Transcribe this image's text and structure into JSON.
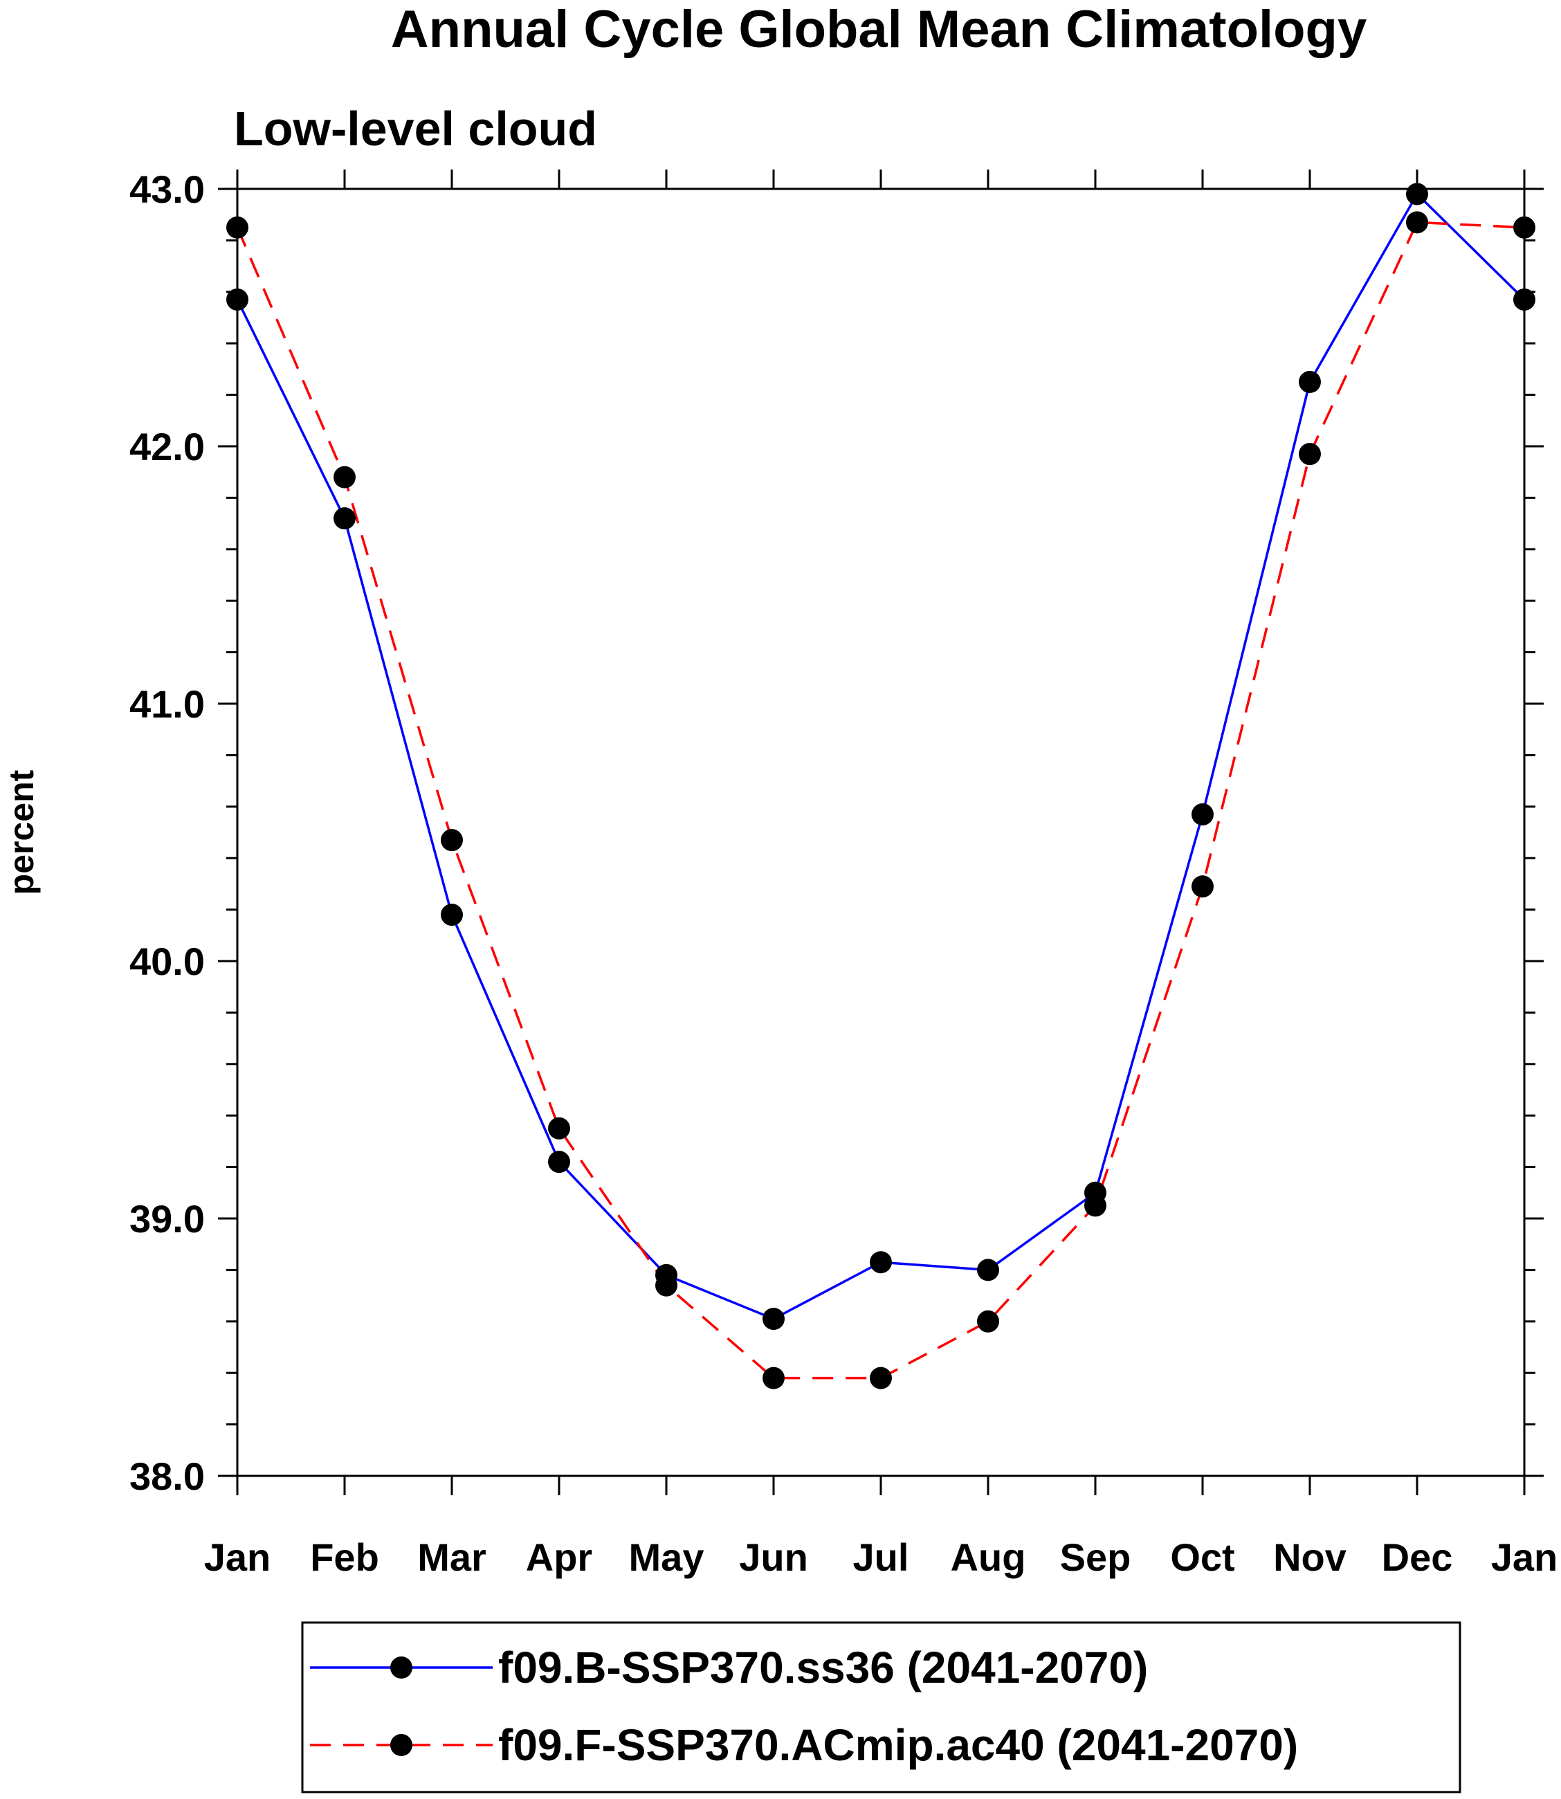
{
  "chart_data": {
    "type": "line",
    "title": "Annual Cycle Global Mean Climatology",
    "subtitle": "Low-level cloud",
    "xlabel": "",
    "ylabel": "percent",
    "categories": [
      "Jan",
      "Feb",
      "Mar",
      "Apr",
      "May",
      "Jun",
      "Jul",
      "Aug",
      "Sep",
      "Oct",
      "Nov",
      "Dec",
      "Jan"
    ],
    "ylim": [
      38.0,
      43.0
    ],
    "yticks": [
      "38.0",
      "39.0",
      "40.0",
      "41.0",
      "42.0",
      "43.0"
    ],
    "grid": false,
    "legend_position": "bottom",
    "series": [
      {
        "name": "f09.B-SSP370.ss36 (2041-2070)",
        "color": "#0000ff",
        "line_style": "solid",
        "marker": "filled-circle",
        "values": [
          42.57,
          41.72,
          40.18,
          39.22,
          38.78,
          38.61,
          38.83,
          38.8,
          39.1,
          40.57,
          42.25,
          42.98,
          42.57
        ]
      },
      {
        "name": "f09.F-SSP370.ACmip.ac40 (2041-2070)",
        "color": "#ff0000",
        "line_style": "dashed",
        "marker": "filled-circle",
        "values": [
          42.85,
          41.88,
          40.47,
          39.35,
          38.74,
          38.38,
          38.38,
          38.6,
          39.05,
          40.29,
          41.97,
          42.87,
          42.85
        ]
      }
    ]
  }
}
